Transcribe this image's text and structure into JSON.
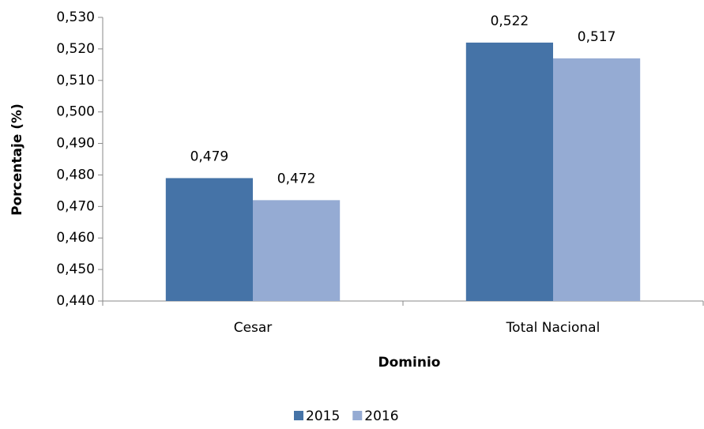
{
  "chart_data": {
    "type": "bar",
    "x_label": "Dominio",
    "y_label": "Porcentaje (%)",
    "categories": [
      "Cesar",
      "Total Nacional"
    ],
    "series": [
      {
        "name": "2015",
        "color": "#4573a7",
        "values": [
          0.479,
          0.522
        ],
        "value_labels": [
          "0,479",
          "0,522"
        ]
      },
      {
        "name": "2016",
        "color": "#95abd3",
        "values": [
          0.472,
          0.517
        ],
        "value_labels": [
          "0,472",
          "0,517"
        ]
      }
    ],
    "ylim": [
      0.44,
      0.53
    ],
    "yticks": [
      {
        "value": 0.44,
        "label": "0,440"
      },
      {
        "value": 0.45,
        "label": "0,450"
      },
      {
        "value": 0.46,
        "label": "0,460"
      },
      {
        "value": 0.47,
        "label": "0,470"
      },
      {
        "value": 0.48,
        "label": "0,480"
      },
      {
        "value": 0.49,
        "label": "0,490"
      },
      {
        "value": 0.5,
        "label": "0,500"
      },
      {
        "value": 0.51,
        "label": "0,510"
      },
      {
        "value": 0.52,
        "label": "0,520"
      },
      {
        "value": 0.53,
        "label": "0,530"
      }
    ],
    "grid": false,
    "legend": "bottom"
  }
}
